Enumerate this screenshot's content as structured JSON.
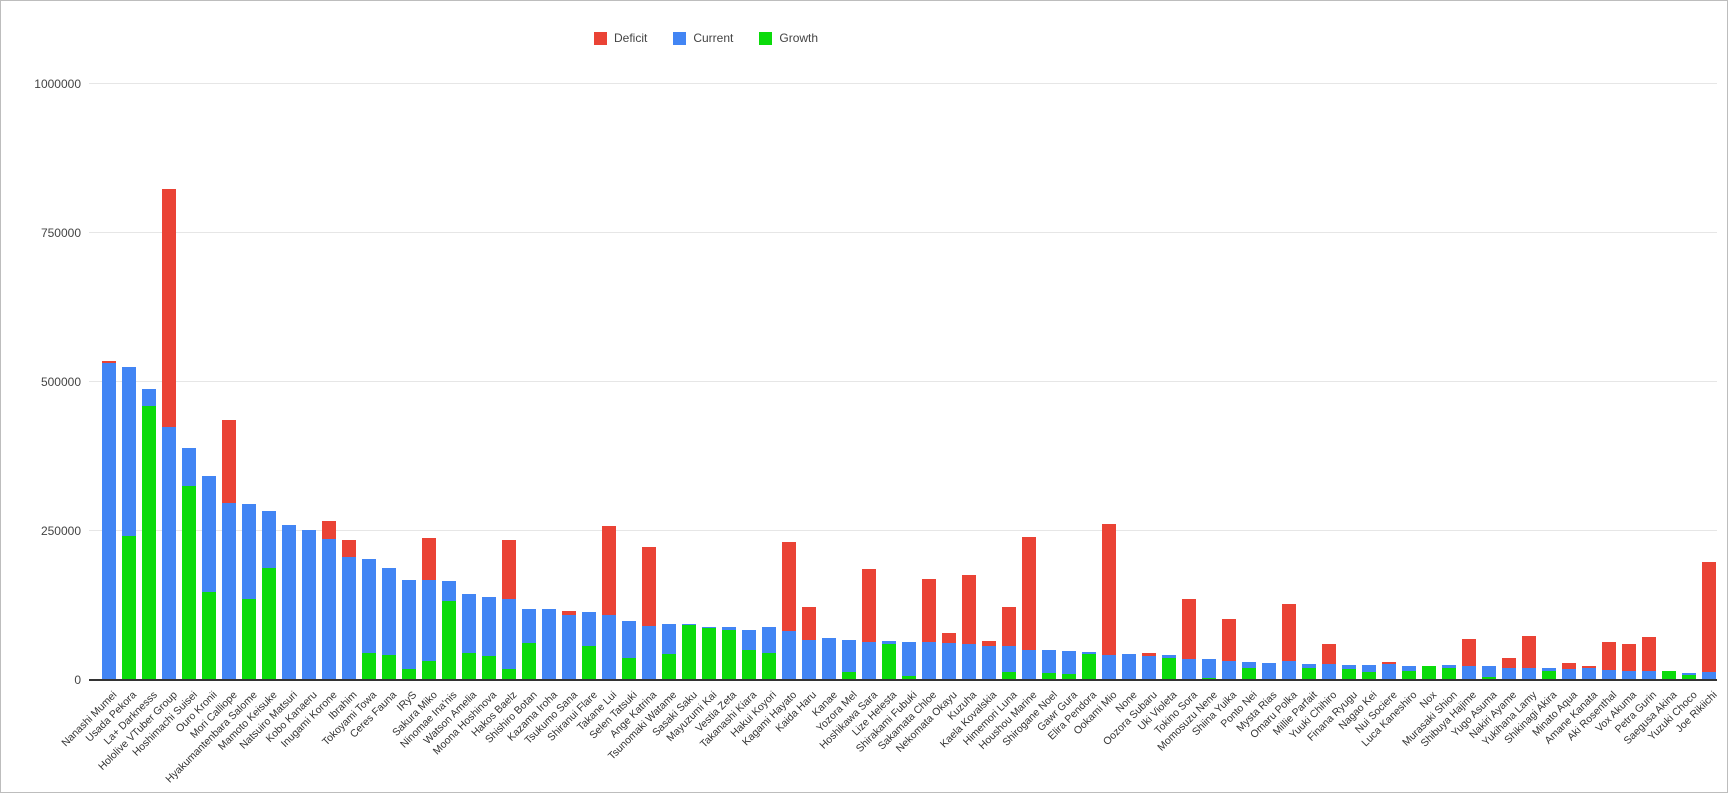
{
  "legend": [
    {
      "label": "Deficit",
      "color": "#EA4335"
    },
    {
      "label": "Current",
      "color": "#4285F4"
    },
    {
      "label": "Growth",
      "color": "#0BDB0B"
    }
  ],
  "chart_data": {
    "type": "bar",
    "stacked": true,
    "title": "",
    "xlabel": "",
    "ylabel": "",
    "ylim": [
      0,
      1000000
    ],
    "yticks": [
      0,
      250000,
      500000,
      750000,
      1000000
    ],
    "grid": true,
    "legend_position": "top-center",
    "series_colors": {
      "Deficit": "#EA4335",
      "Current": "#4285F4",
      "Growth": "#0BDB0B"
    },
    "stack_order_bottom_to_top": [
      "Growth",
      "Current",
      "Deficit"
    ],
    "categories": [
      "Nanashi Mumei",
      "Usada Pekora",
      "La+ Darknesss",
      "Hololive VTuber Group",
      "Hoshimachi Suisei",
      "Ouro Kronii",
      "Mori Calliope",
      "Hyakumantenbara Salome",
      "Mamoto Keisuke",
      "Natsuiro Matsuri",
      "Kobo Kanaeru",
      "Inugami Korone",
      "Ibrahim",
      "Tokoyami Towa",
      "Ceres Fauna",
      "IRyS",
      "Sakura Miko",
      "Ninomae Ina'nis",
      "Watson Amelia",
      "Moona Hoshinova",
      "Hakos Baelz",
      "Shishiro Botan",
      "Kazama Iroha",
      "Tsukumo Sana",
      "Shiranui Flare",
      "Takane Lui",
      "Selen Tatsuki",
      "Ange Katrina",
      "Tsunomaki Watame",
      "Sasaki Saku",
      "Mayuzumi Kai",
      "Vestia Zeta",
      "Takanashi Kiara",
      "Hakui Koyori",
      "Kagami Hayato",
      "Kaida Haru",
      "Kanae",
      "Yozora Mel",
      "Hoshikawa Sara",
      "Lize Helesta",
      "Shirakami Fubuki",
      "Sakamata Chloe",
      "Nekomata Okayu",
      "Kuzuha",
      "Kaela Kovalskia",
      "Himemori Luna",
      "Houshou Marine",
      "Shirogane Noel",
      "Gawr Gura",
      "Elira Pendora",
      "Ookami Mio",
      "None",
      "Oozora Subaru",
      "Uki Violeta",
      "Tokino Sora",
      "Momosuzu Nene",
      "Shiina Yuika",
      "Ponto Nei",
      "Mysta Rias",
      "Omaru Polka",
      "Millie Parfait",
      "Yuuki Chihiro",
      "Finana Ryugu",
      "Nagao Kei",
      "Nui Sociere",
      "Luca Kaneshiro",
      "Nox",
      "Murasaki Shion",
      "Shibuya Hajime",
      "Yugo Asuma",
      "Nakiri Ayame",
      "Yukihana Lamy",
      "Shikinagi Akira",
      "Minato Aqua",
      "Amane Kanata",
      "Aki Rosenthal",
      "Vox Akuma",
      "Petra Gurin",
      "Saegusa Akina",
      "Yuzuki Choco",
      "Joe Rikiichi"
    ],
    "series": [
      {
        "name": "Growth",
        "values": [
          0,
          240000,
          458000,
          0,
          323000,
          146000,
          0,
          134000,
          186000,
          0,
          0,
          0,
          0,
          44000,
          41000,
          17000,
          30000,
          131000,
          44000,
          38000,
          17000,
          60000,
          0,
          0,
          55000,
          0,
          35000,
          0,
          42000,
          90000,
          86000,
          83000,
          49000,
          44000,
          0,
          0,
          0,
          12000,
          0,
          58000,
          5000,
          0,
          0,
          0,
          0,
          12000,
          0,
          10000,
          8000,
          42000,
          0,
          0,
          0,
          36000,
          0,
          2000,
          0,
          19000,
          0,
          0,
          18000,
          0,
          17000,
          11000,
          0,
          13000,
          21000,
          19000,
          0,
          3000,
          0,
          0,
          14000,
          0,
          0,
          0,
          0,
          0,
          13000,
          6000,
          0
        ]
      },
      {
        "name": "Current",
        "values": [
          530000,
          283000,
          28000,
          422000,
          65000,
          194000,
          295000,
          160000,
          96000,
          258000,
          250000,
          235000,
          205000,
          158000,
          146000,
          149000,
          136000,
          33000,
          98000,
          100000,
          117000,
          58000,
          117000,
          108000,
          57000,
          108000,
          63000,
          89000,
          51000,
          3000,
          2000,
          4000,
          33000,
          43000,
          81000,
          65000,
          68000,
          53000,
          62000,
          5000,
          57000,
          62000,
          60000,
          58000,
          55000,
          43000,
          48000,
          38000,
          39000,
          4000,
          40000,
          42000,
          38000,
          4000,
          33000,
          31000,
          31000,
          9000,
          27000,
          30000,
          8000,
          25000,
          7000,
          13000,
          25000,
          9000,
          0,
          4000,
          21000,
          18000,
          19000,
          19000,
          5000,
          17000,
          19000,
          15000,
          14000,
          14000,
          0,
          4000,
          12000
        ]
      },
      {
        "name": "Deficit",
        "values": [
          4000,
          0,
          0,
          400000,
          0,
          0,
          140000,
          0,
          0,
          0,
          0,
          30000,
          28000,
          0,
          0,
          0,
          70000,
          0,
          0,
          0,
          100000,
          0,
          0,
          6000,
          0,
          148000,
          0,
          133000,
          0,
          0,
          0,
          0,
          0,
          0,
          149000,
          55000,
          0,
          0,
          123000,
          0,
          0,
          105000,
          18000,
          117000,
          8000,
          65000,
          190000,
          0,
          0,
          0,
          220000,
          0,
          5000,
          0,
          102000,
          0,
          70000,
          0,
          0,
          96000,
          0,
          33000,
          0,
          0,
          3000,
          0,
          0,
          0,
          46000,
          0,
          17000,
          54000,
          0,
          10000,
          2000,
          47000,
          44000,
          56000,
          0,
          0,
          184000
        ]
      }
    ]
  },
  "axis": {
    "ytick_labels": [
      "0",
      "250000",
      "500000",
      "750000",
      "1000000"
    ]
  }
}
